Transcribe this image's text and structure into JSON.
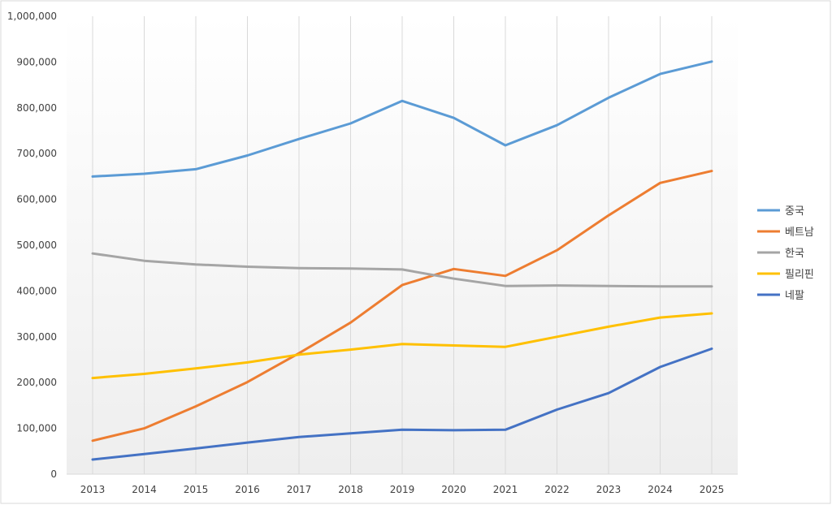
{
  "chart_data": {
    "type": "line",
    "title": "",
    "xlabel": "",
    "ylabel": "",
    "categories": [
      "2013",
      "2014",
      "2015",
      "2016",
      "2017",
      "2018",
      "2019",
      "2020",
      "2021",
      "2022",
      "2023",
      "2024",
      "2025"
    ],
    "ylim": [
      0,
      1000000
    ],
    "yticks": [
      "0",
      "100,000",
      "200,000",
      "300,000",
      "400,000",
      "500,000",
      "600,000",
      "700,000",
      "800,000",
      "900,000",
      "1,000,000"
    ],
    "grid": "vertical",
    "legend": "right",
    "series": [
      {
        "name": "중국",
        "color": "#5b9bd5",
        "values": [
          650000,
          656000,
          666000,
          696000,
          732000,
          766000,
          815000,
          778000,
          718000,
          762000,
          822000,
          874000,
          901000
        ]
      },
      {
        "name": "베트남",
        "color": "#ed7d31",
        "values": [
          73000,
          100000,
          148000,
          201000,
          264000,
          331000,
          413000,
          448000,
          433000,
          489000,
          565000,
          636000,
          662000
        ]
      },
      {
        "name": "한국",
        "color": "#a5a5a5",
        "values": [
          482000,
          466000,
          458000,
          453000,
          450000,
          449000,
          447000,
          427000,
          411000,
          412000,
          411000,
          410000,
          410000
        ]
      },
      {
        "name": "필리핀",
        "color": "#ffc000",
        "values": [
          210000,
          219000,
          231000,
          244000,
          261000,
          272000,
          284000,
          281000,
          278000,
          300000,
          322000,
          342000,
          351000
        ]
      },
      {
        "name": "네팔",
        "color": "#4472c4",
        "values": [
          32000,
          44000,
          56000,
          69000,
          81000,
          89000,
          97000,
          96000,
          97000,
          141000,
          177000,
          234000,
          274000
        ]
      }
    ]
  }
}
